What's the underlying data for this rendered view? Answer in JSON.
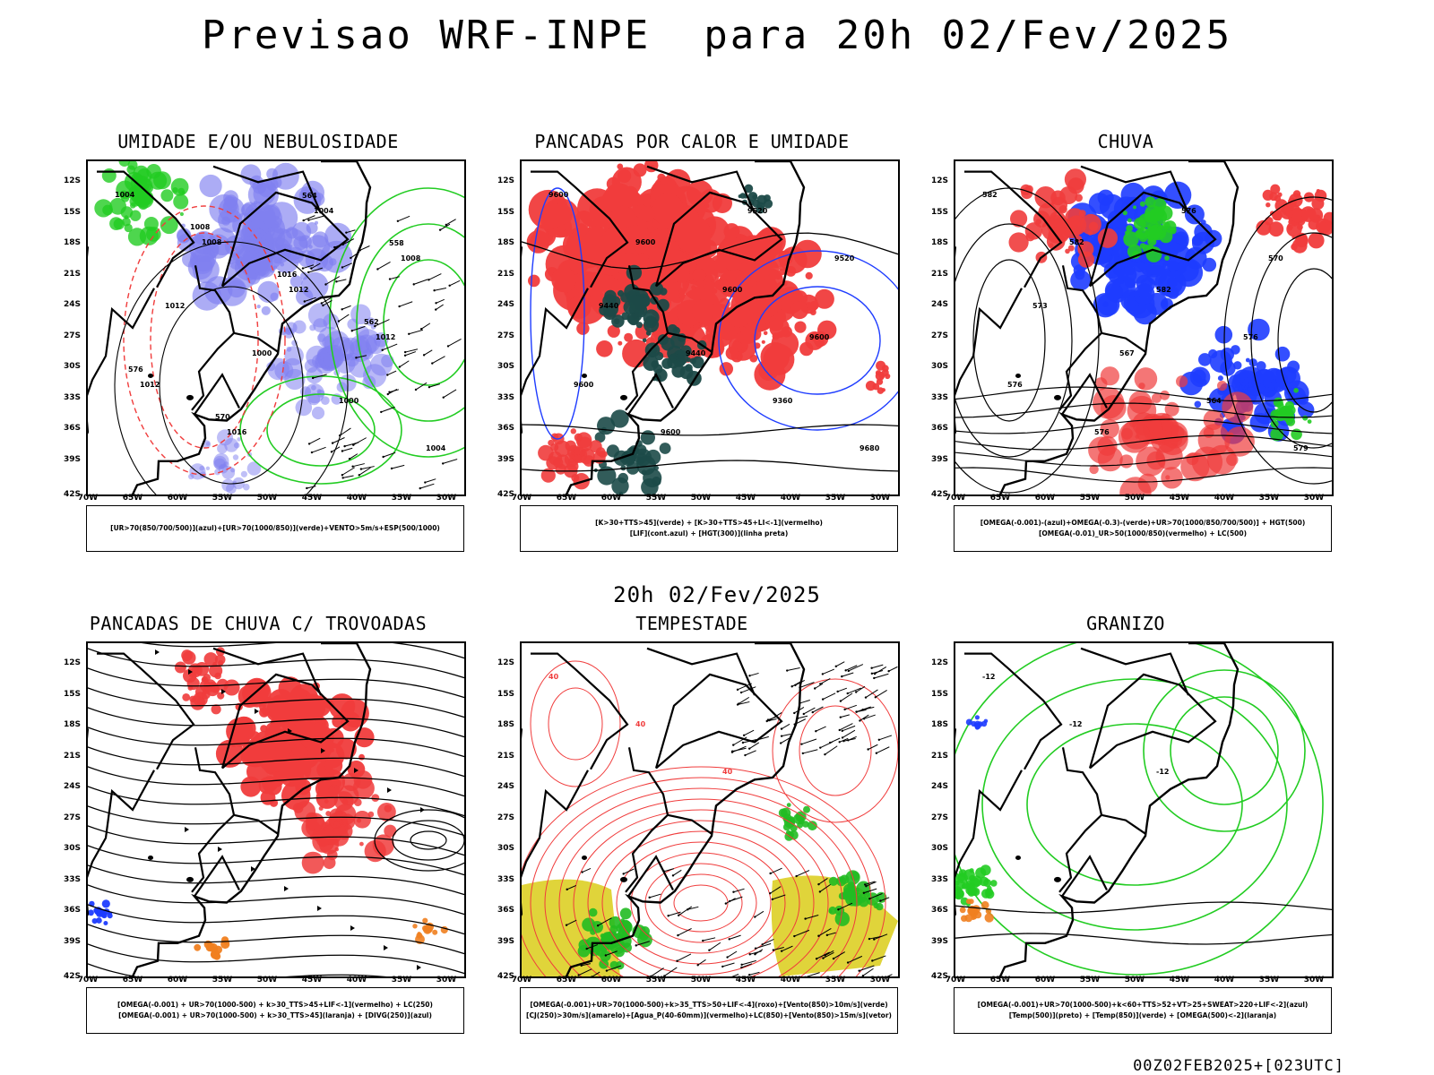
{
  "header": {
    "title": "Previsao WRF-INPE  para 20h 02/Fev/2025",
    "mid_stamp": "20h 02/Fev/2025",
    "footer_stamp": "00Z02FEB2025+[023UTC]"
  },
  "axes": {
    "lat_labels": [
      "12S",
      "15S",
      "18S",
      "21S",
      "24S",
      "27S",
      "30S",
      "33S",
      "36S",
      "39S",
      "42S"
    ],
    "lon_labels": [
      "70W",
      "65W",
      "60W",
      "55W",
      "50W",
      "45W",
      "40W",
      "35W",
      "30W"
    ]
  },
  "colors": {
    "blue_field": "#8080f0",
    "blue_line": "#1e3cff",
    "green_line": "#22cc22",
    "red": "#f03c3c",
    "dark_teal": "#1c4a48",
    "yellow": "#e0d43a",
    "orange": "#f08020",
    "coast": "#000000"
  },
  "panels": [
    {
      "id": "umidade",
      "title": "UMIDADE E/OU NEBULOSIDADE",
      "legend": [
        "[UR>70(850/700/500)](azul)+[UR>70(1000/850)](verde)+VENTO>5m/s+ESP(500/1000)"
      ],
      "contour_labels": [
        "1004",
        "1008",
        "1012",
        "1012",
        "1012",
        "1016",
        "1004",
        "1008",
        "1012",
        "1000",
        "1000",
        "1004",
        "1008",
        "1016",
        "562",
        "576",
        "570",
        "564",
        "558"
      ]
    },
    {
      "id": "pancadas-calor",
      "title": "PANCADAS POR CALOR E UMIDADE",
      "legend": [
        "[K>30+TTS>45](verde) + [K>30+TTS>45+LI<-1](vermelho)",
        "[LIF](cont.azul) + [HGT(300)](linha preta)"
      ],
      "contour_labels": [
        "9600",
        "9600",
        "9600",
        "9600",
        "9600",
        "9600",
        "9520",
        "9520",
        "9440",
        "9440",
        "9360",
        "9680"
      ]
    },
    {
      "id": "chuva",
      "title": "CHUVA",
      "legend": [
        "[OMEGA(-0.001)-(azul)+OMEGA(-0.3)-(verde)+UR>70(1000/850/700/500)] + HGT(500)",
        "[OMEGA(-0.01)_UR>50(1000/850)(vermelho) + LC(500)"
      ],
      "contour_labels": [
        "582",
        "582",
        "582",
        "576",
        "576",
        "576",
        "576",
        "570",
        "573",
        "567",
        "564",
        "579"
      ]
    },
    {
      "id": "pancadas-trovoadas",
      "title": "PANCADAS DE CHUVA C/ TROVOADAS",
      "legend": [
        "[OMEGA(-0.001) + UR>70(1000-500) + k>30_TTS>45+LIF<-1](vermelho) + LC(250)",
        "[OMEGA(-0.001) + UR>70(1000-500) + k>30_TTS>45](laranja) + [DIVG(250)](azul)"
      ],
      "contour_labels": []
    },
    {
      "id": "tempestade",
      "title": "TEMPESTADE",
      "legend": [
        "[OMEGA(-0.001)+UR>70(1000-500)+k>35_TTS>50+LIF<-4](roxo)+[Vento(850)>10m/s](verde)",
        "[CJ(250)>30m/s](amarelo)+[Agua_P(40-60mm)](vermelho)+LC(850)+[Vento(850)>15m/s](vetor)"
      ],
      "contour_labels": [
        "40",
        "40",
        "40"
      ]
    },
    {
      "id": "granizo",
      "title": "GRANIZO",
      "legend": [
        "[OMEGA(-0.001)+UR>70(1000-500)+k<60+TTS>52+VT>25+SWEAT>220+LIF<-2](azul)",
        "[Temp(500)](preto) + [Temp(850)](verde) + [OMEGA(500)<-2](laranja)"
      ],
      "contour_labels": [
        "-12",
        "-12",
        "-12"
      ]
    }
  ]
}
